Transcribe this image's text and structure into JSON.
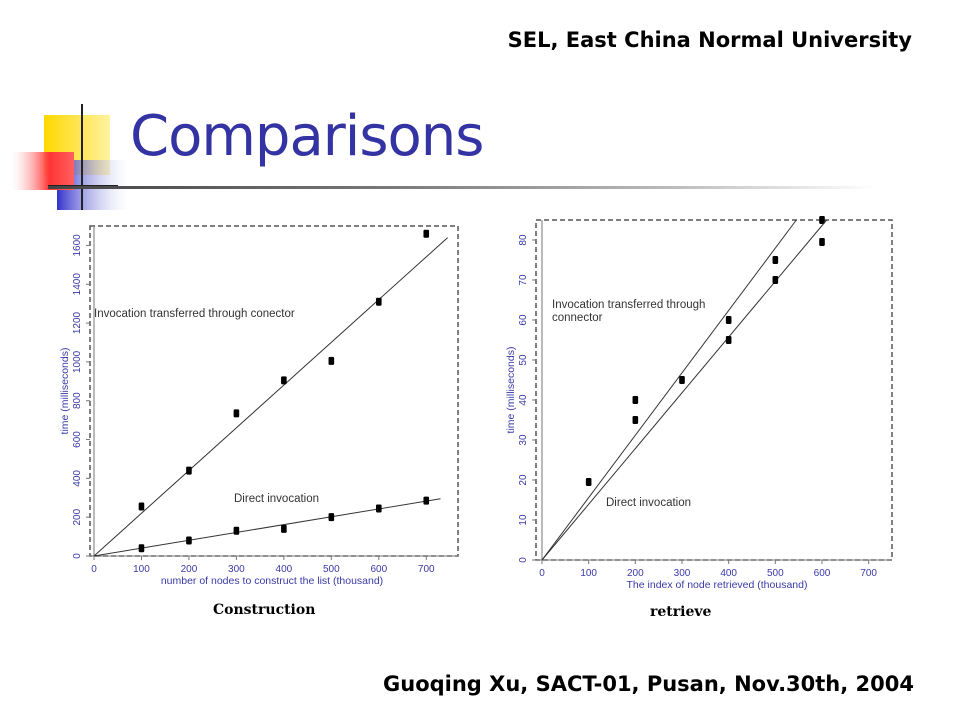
{
  "header": {
    "org": "SEL, East China Normal University"
  },
  "slide": {
    "title": "Comparisons"
  },
  "footer": {
    "text": "Guoqing Xu, SACT-01, Pusan, Nov.30th, 2004"
  },
  "captions": {
    "left": "Construction",
    "right": "retrieve"
  },
  "colors": {
    "title": "#3333a3",
    "axis_text": "#3a3aa8",
    "data": "#000000",
    "deco_yellow": "#ffd800",
    "deco_blue": "#3333cc",
    "deco_red": "#ff3333"
  },
  "chart_data": [
    {
      "type": "scatter",
      "xlabel": "number of nodes to construct the list (thousand)",
      "ylabel": "time (milliseconds)",
      "xlim": [
        0,
        750
      ],
      "ylim": [
        0,
        1700
      ],
      "xticks": [
        0,
        100,
        200,
        300,
        400,
        500,
        600,
        700
      ],
      "yticks": [
        0,
        200,
        400,
        600,
        800,
        1000,
        1200,
        1400,
        1600
      ],
      "series": [
        {
          "name": "Invocation transferred through conector",
          "points": [
            [
              100,
              255
            ],
            [
              200,
              440
            ],
            [
              300,
              735
            ],
            [
              400,
              905
            ],
            [
              500,
              1005
            ],
            [
              600,
              1310
            ],
            [
              700,
              1660
            ]
          ],
          "fit": [
            [
              0,
              0
            ],
            [
              745,
              1640
            ]
          ]
        },
        {
          "name": "Direct invocation",
          "points": [
            [
              100,
              40
            ],
            [
              200,
              80
            ],
            [
              300,
              130
            ],
            [
              400,
              140
            ],
            [
              500,
              200
            ],
            [
              600,
              245
            ],
            [
              700,
              285
            ]
          ],
          "fit": [
            [
              0,
              0
            ],
            [
              730,
              295
            ]
          ]
        }
      ]
    },
    {
      "type": "scatter",
      "xlabel": "The index of node retrieved (thousand)",
      "ylabel": "time (milliseconds)",
      "xlim": [
        0,
        750
      ],
      "ylim": [
        0,
        85
      ],
      "xticks": [
        0,
        100,
        200,
        300,
        400,
        500,
        600,
        700
      ],
      "yticks": [
        0,
        10,
        20,
        30,
        40,
        50,
        60,
        70,
        80
      ],
      "series": [
        {
          "name": "Invocation transferred through connector",
          "points": [
            [
              100,
              19.5
            ],
            [
              200,
              40
            ],
            [
              400,
              60
            ],
            [
              500,
              75
            ],
            [
              600,
              85
            ]
          ],
          "fit": [
            [
              0,
              0
            ],
            [
              545,
              85
            ]
          ]
        },
        {
          "name": "Direct invocation",
          "points": [
            [
              200,
              35
            ],
            [
              300,
              45
            ],
            [
              400,
              55
            ],
            [
              500,
              70
            ],
            [
              600,
              79.5
            ]
          ],
          "fit": [
            [
              0,
              0
            ],
            [
              610,
              85
            ]
          ]
        }
      ]
    }
  ]
}
